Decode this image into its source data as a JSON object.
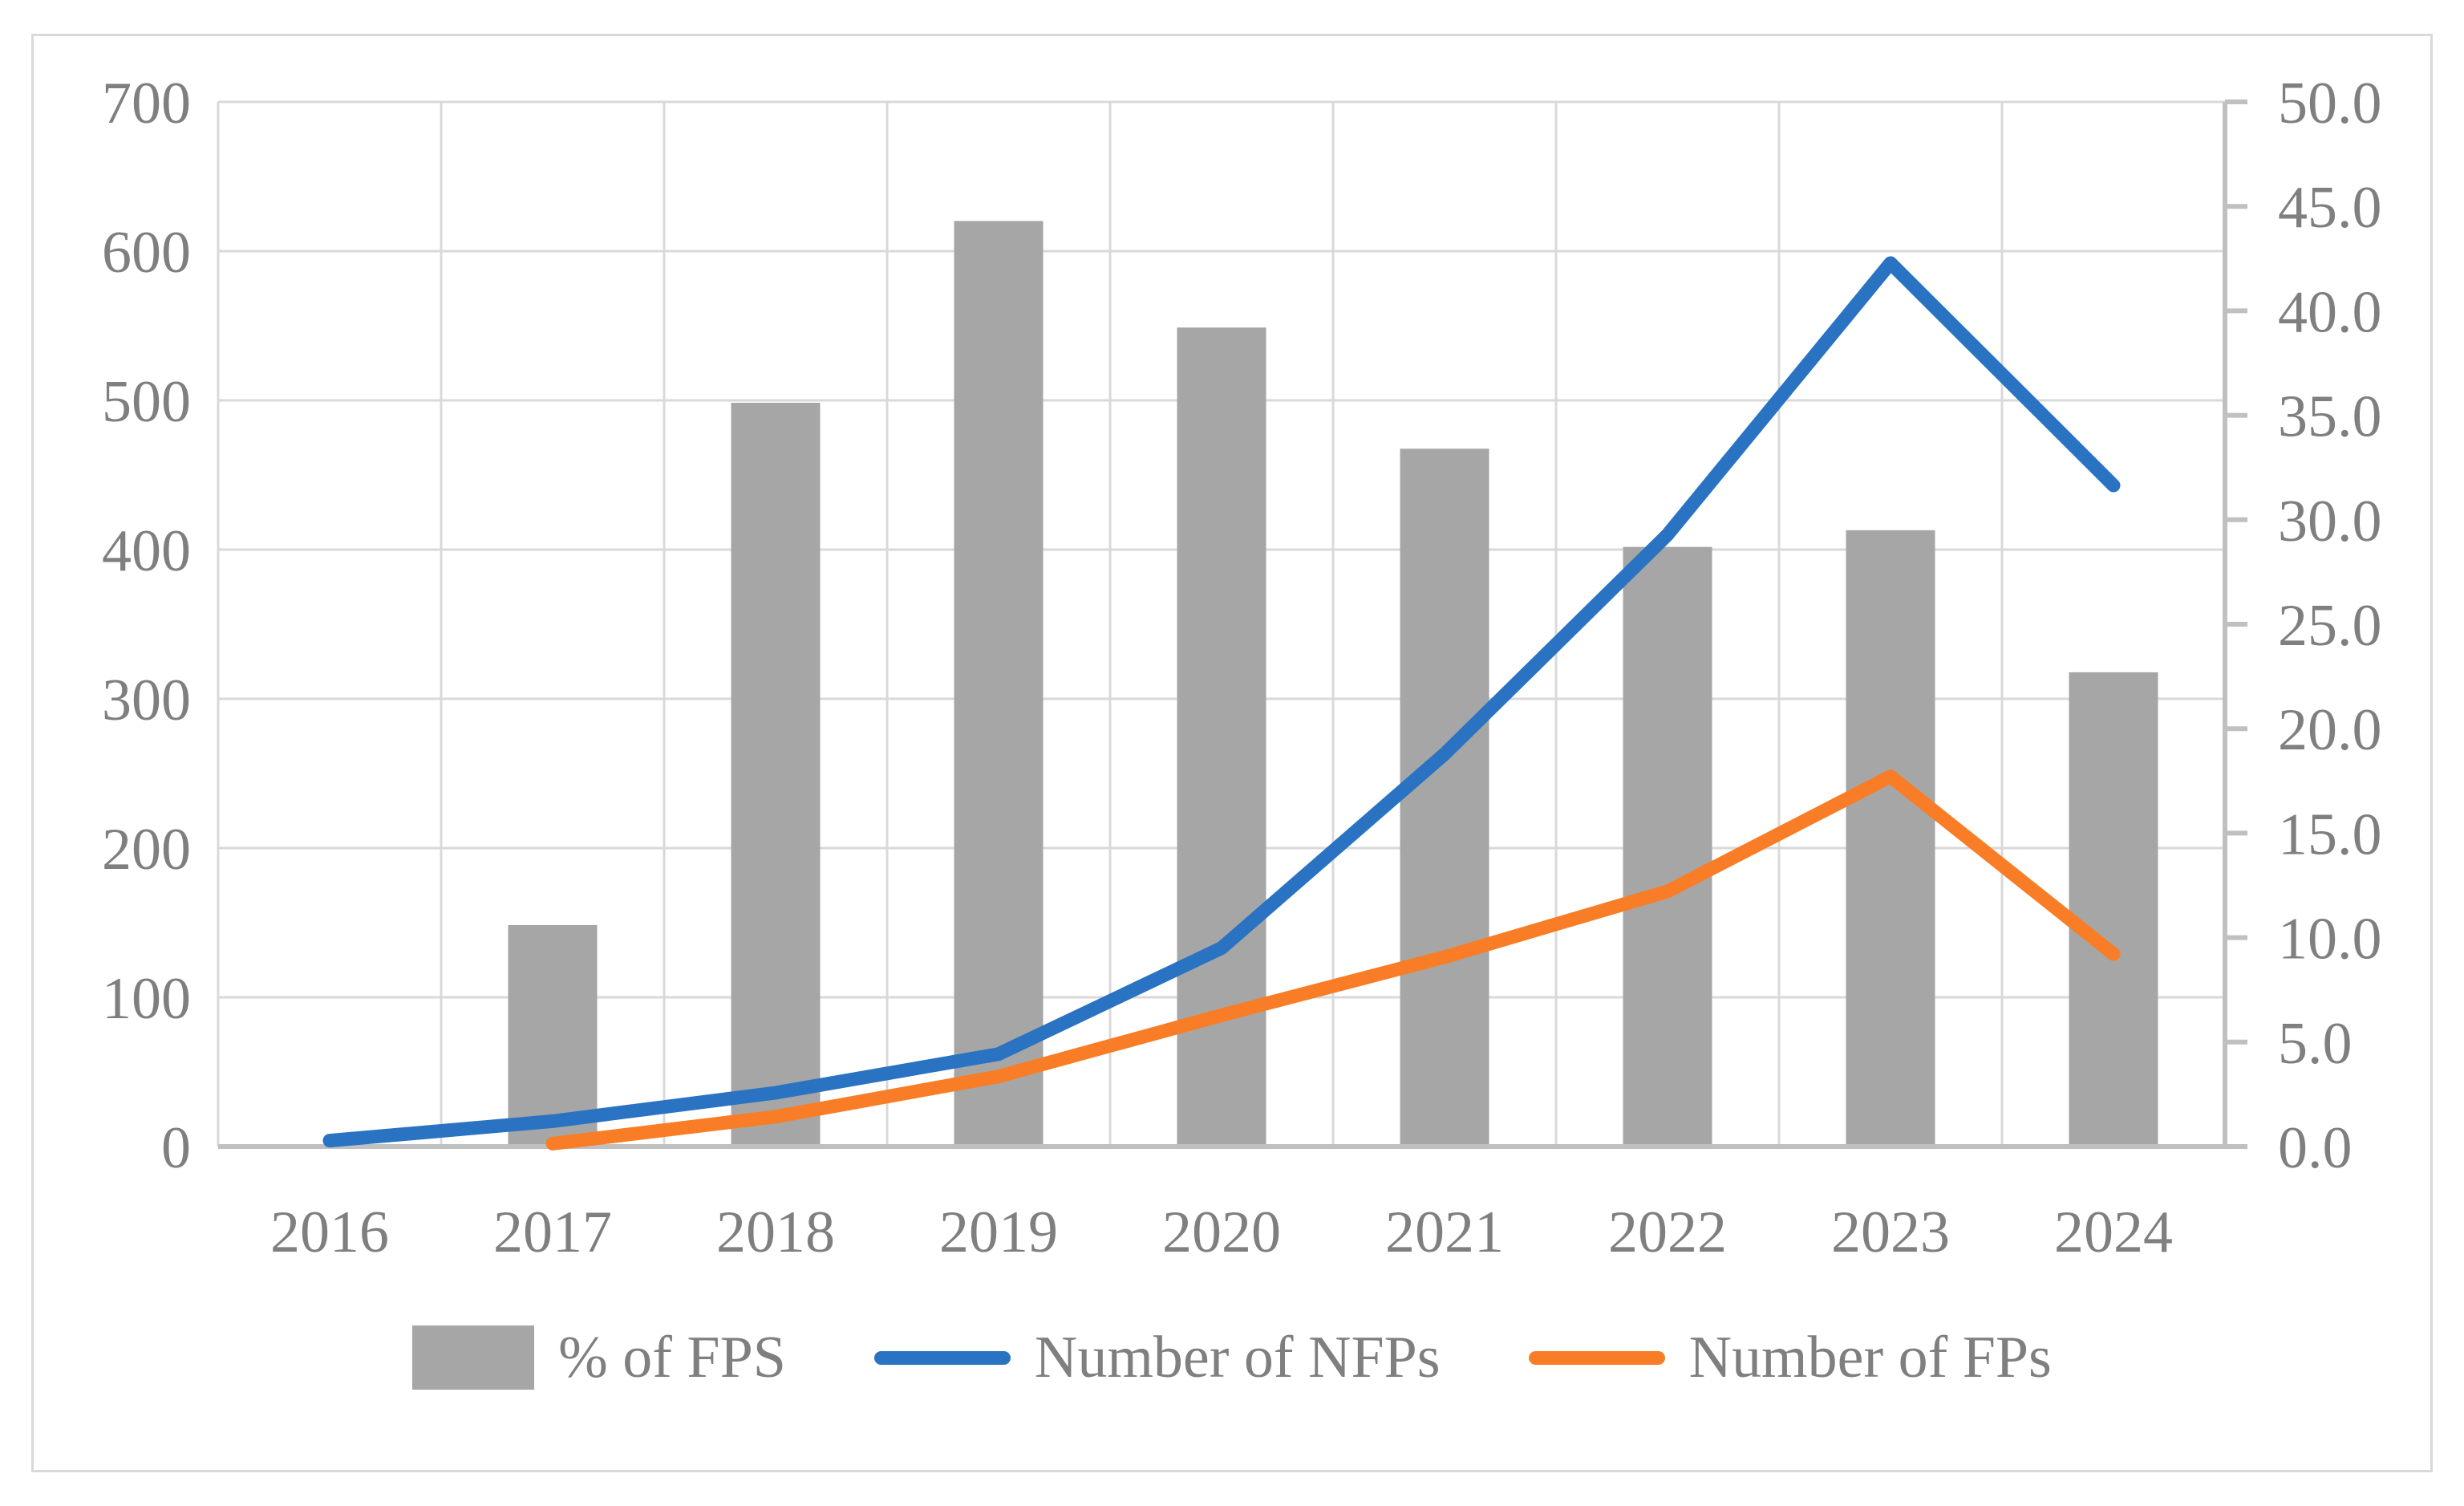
{
  "figure": {
    "kind": "excel-combo-chart",
    "background": "#FFFFFF",
    "frame_color": "#D9D9D9"
  },
  "colors": {
    "bar": "#A6A6A6",
    "nfp_line": "#2A73C2",
    "fp_line": "#F97D26",
    "gridline": "#D9D9D9",
    "axis_line": "#C0C0C0",
    "label_text": "#7F7F7F"
  },
  "chart_data": {
    "type": "combo",
    "title": "",
    "xlabel": "",
    "ylabel_left": "",
    "ylabel_right": "",
    "grid": true,
    "legend_position": "bottom",
    "categories": [
      "2016",
      "2017",
      "2018",
      "2019",
      "2020",
      "2021",
      "2022",
      "2023",
      "2024"
    ],
    "series": [
      {
        "name": "% of FPS",
        "type": "bar",
        "axis": "right",
        "color": "#A6A6A6",
        "values": [
          null,
          10.6,
          35.6,
          44.3,
          39.2,
          33.4,
          28.7,
          29.5,
          22.7
        ]
      },
      {
        "name": "Number of NFPs",
        "type": "line",
        "axis": "left",
        "color": "#2A73C2",
        "values": [
          4,
          17,
          36,
          62,
          133,
          263,
          410,
          592,
          443
        ]
      },
      {
        "name": "Number of FPs",
        "type": "line",
        "axis": "left",
        "color": "#F97D26",
        "values": [
          null,
          2,
          20,
          47,
          88,
          127,
          171,
          248,
          129
        ]
      }
    ],
    "axes": {
      "left": {
        "min": 0,
        "max": 700,
        "step": 100,
        "tick_labels": [
          "0",
          "100",
          "200",
          "300",
          "400",
          "500",
          "600",
          "700"
        ]
      },
      "right": {
        "min": 0,
        "max": 50,
        "step": 5,
        "tick_labels": [
          "0.0",
          "5.0",
          "10.0",
          "15.0",
          "20.0",
          "25.0",
          "30.0",
          "35.0",
          "40.0",
          "45.0",
          "50.0"
        ]
      }
    }
  }
}
